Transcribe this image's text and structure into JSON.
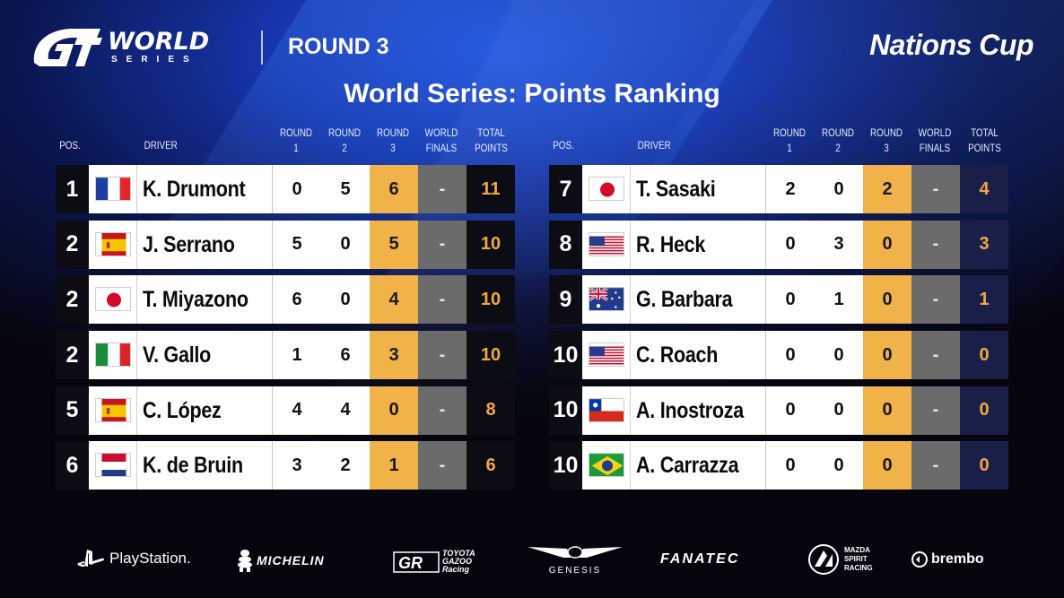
{
  "header": {
    "logo_word": "WORLD",
    "logo_sub": "SERIES",
    "round": "ROUND 3",
    "cup": "Nations Cup",
    "title": "World Series: Points Ranking"
  },
  "columns": {
    "pos": "POS.",
    "driver": "DRIVER",
    "r1_a": "ROUND",
    "r1_b": "1",
    "r2_a": "ROUND",
    "r2_b": "2",
    "r3_a": "ROUND",
    "r3_b": "3",
    "wf_a": "WORLD",
    "wf_b": "FINALS",
    "tp_a": "TOTAL",
    "tp_b": "POINTS"
  },
  "left_rows": [
    {
      "pos": "1",
      "flag": "france-flag",
      "name": "K. Drumont",
      "r1": "0",
      "r2": "5",
      "r3": "6",
      "wf": "-",
      "total": "11"
    },
    {
      "pos": "2",
      "flag": "spain-flag",
      "name": "J. Serrano",
      "r1": "5",
      "r2": "0",
      "r3": "5",
      "wf": "-",
      "total": "10"
    },
    {
      "pos": "2",
      "flag": "japan-flag",
      "name": "T. Miyazono",
      "r1": "6",
      "r2": "0",
      "r3": "4",
      "wf": "-",
      "total": "10"
    },
    {
      "pos": "2",
      "flag": "italy-flag",
      "name": "V. Gallo",
      "r1": "1",
      "r2": "6",
      "r3": "3",
      "wf": "-",
      "total": "10"
    },
    {
      "pos": "5",
      "flag": "spain-flag",
      "name": "C. López",
      "r1": "4",
      "r2": "4",
      "r3": "0",
      "wf": "-",
      "total": "8"
    },
    {
      "pos": "6",
      "flag": "netherlands-flag",
      "name": "K. de Bruin",
      "r1": "3",
      "r2": "2",
      "r3": "1",
      "wf": "-",
      "total": "6"
    }
  ],
  "right_rows": [
    {
      "pos": "7",
      "flag": "japan-flag",
      "name": "T. Sasaki",
      "r1": "2",
      "r2": "0",
      "r3": "2",
      "wf": "-",
      "total": "4"
    },
    {
      "pos": "8",
      "flag": "usa-flag",
      "name": "R. Heck",
      "r1": "0",
      "r2": "3",
      "r3": "0",
      "wf": "-",
      "total": "3"
    },
    {
      "pos": "9",
      "flag": "australia-flag",
      "name": "G. Barbara",
      "r1": "0",
      "r2": "1",
      "r3": "0",
      "wf": "-",
      "total": "1"
    },
    {
      "pos": "10",
      "flag": "usa-flag",
      "name": "C. Roach",
      "r1": "0",
      "r2": "0",
      "r3": "0",
      "wf": "-",
      "total": "0"
    },
    {
      "pos": "10",
      "flag": "chile-flag",
      "name": "A. Inostroza",
      "r1": "0",
      "r2": "0",
      "r3": "0",
      "wf": "-",
      "total": "0"
    },
    {
      "pos": "10",
      "flag": "brazil-flag",
      "name": "A. Carrazza",
      "r1": "0",
      "r2": "0",
      "r3": "0",
      "wf": "-",
      "total": "0"
    }
  ],
  "sponsors": {
    "playstation": "PlayStation.",
    "michelin": "MICHELIN",
    "gr_1": "TOYOTA",
    "gr_2": "GAZOO",
    "gr_3": "Racing",
    "genesis": "GENESIS",
    "fanatec": "FANATEC",
    "mazda_1": "MAZDA",
    "mazda_2": "SPIRIT",
    "mazda_3": "RACING",
    "brembo": "brembo"
  },
  "colors": {
    "round3_cell": "#f2b24a",
    "finals_cell": "#6b6b6b",
    "total_text": "#f4a640",
    "background_blue": "#1535a8"
  }
}
